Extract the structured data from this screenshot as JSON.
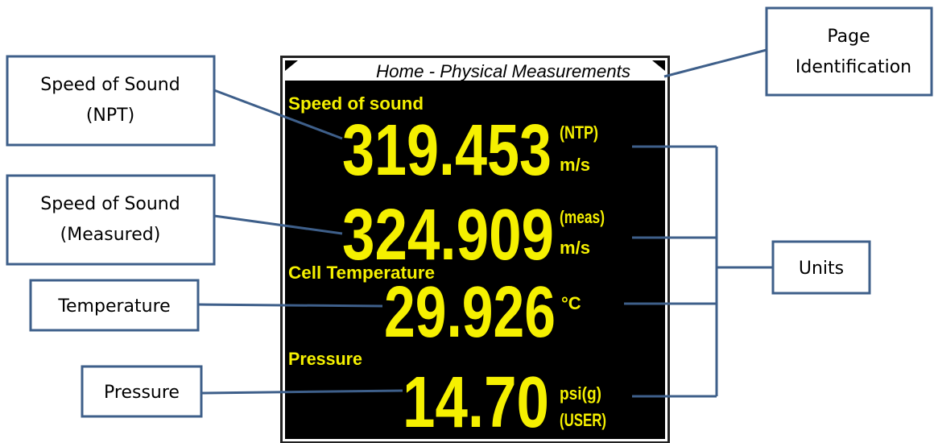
{
  "screen": {
    "title": "Home - Physical Measurements",
    "fields": [
      {
        "label": "Speed of sound",
        "value": "319.453",
        "unit": [
          "(NTP)",
          "m/s"
        ]
      },
      {
        "value": "324.909",
        "unit": [
          "(meas)",
          "m/s"
        ]
      },
      {
        "label": "Cell Temperature",
        "value": "29.926",
        "unit": [
          "°C"
        ]
      },
      {
        "label": "Pressure",
        "value": "14.70",
        "unit": [
          "psi(g)",
          "(USER)"
        ]
      }
    ]
  },
  "callouts": [
    {
      "lines": [
        "Speed of Sound",
        "(NPT)"
      ]
    },
    {
      "lines": [
        "Speed of Sound",
        "(Measured)"
      ]
    },
    {
      "lines": [
        "Temperature"
      ]
    },
    {
      "lines": [
        "Pressure"
      ]
    },
    {
      "lines": [
        "Page",
        "Identification"
      ]
    },
    {
      "lines": [
        "Units"
      ]
    }
  ]
}
